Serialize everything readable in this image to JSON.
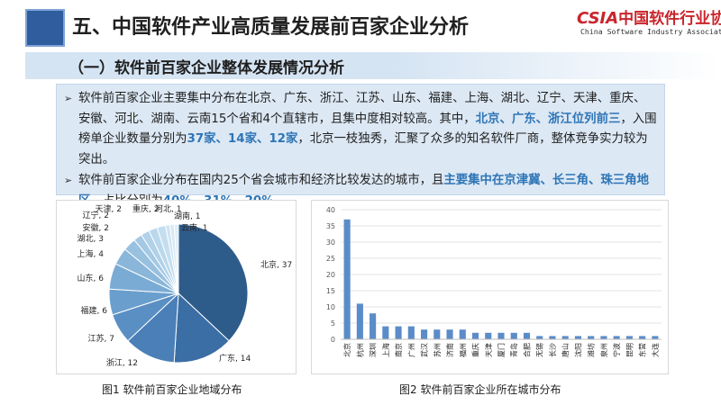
{
  "header": {
    "title": "五、中国软件产业高质量发展前百家企业分析",
    "logo_mark": "CSIA",
    "logo_text": "中国软件行业协会",
    "logo_sub": "China Software Industry Association"
  },
  "subtitle": "（一）软件前百家企业整体发展情况分析",
  "paragraphs": [
    {
      "segments": [
        {
          "text": "软件前百家企业主要集中分布在北京、广东、浙江、江苏、山东、福建、上海、湖北、辽宁、天津、重庆、安徽、河北、湖南、云南15个省和4个直辖市，且集中度相对较高。其中，",
          "hl": false
        },
        {
          "text": "北京、广东、浙江位列前三",
          "hl": true
        },
        {
          "text": "，入围榜单企业数量分别为",
          "hl": false
        },
        {
          "text": "37家、14家、12家",
          "hl": true
        },
        {
          "text": "，北京一枝独秀，汇聚了众多的知名软件厂商，整体竞争实力较为突出。",
          "hl": false
        }
      ]
    },
    {
      "segments": [
        {
          "text": "软件前百家企业分布在国内25个省会城市和经济比较发达的城市，且",
          "hl": false
        },
        {
          "text": "主要集中在京津冀、长三角、珠三角地区",
          "hl": true
        },
        {
          "text": "，占比分别为",
          "hl": false
        },
        {
          "text": "40%、31%、20%。",
          "hl": true
        }
      ]
    }
  ],
  "captions": {
    "fig1": "图1  软件前百家企业地域分布",
    "fig2": "图2  软件前百家企业所在城市分布"
  },
  "chart_data": [
    {
      "type": "pie",
      "categories": [
        "北京",
        "广东",
        "浙江",
        "江苏",
        "福建",
        "山东",
        "上海",
        "湖北",
        "安徽",
        "辽宁",
        "天津",
        "重庆",
        "河北",
        "湖南",
        "云南"
      ],
      "values": [
        37,
        14,
        12,
        7,
        6,
        6,
        4,
        3,
        2,
        2,
        2,
        2,
        1,
        1,
        1
      ],
      "colors": [
        "#2e5c8a",
        "#3a6ea5",
        "#4a7fb8",
        "#5a8fc4",
        "#6a9ecd",
        "#7aabd4",
        "#8ab6da",
        "#98c0df",
        "#a4c9e4",
        "#b0d1e8",
        "#bad8ec",
        "#c4deef",
        "#cde4f2",
        "#d6e9f5",
        "#dfeef8"
      ]
    },
    {
      "type": "bar",
      "categories": [
        "北京",
        "杭州",
        "深圳",
        "上海",
        "南京",
        "广州",
        "武汉",
        "苏州",
        "济南",
        "福州",
        "重庆",
        "天津",
        "厦门",
        "青岛",
        "合肥",
        "无锡",
        "长沙",
        "唐山",
        "沈阳",
        "潍坊",
        "泉州",
        "宁波",
        "昆明",
        "东营",
        "大连"
      ],
      "values": [
        37,
        11,
        8,
        4,
        4,
        4,
        3,
        3,
        3,
        3,
        2,
        2,
        2,
        2,
        2,
        1,
        1,
        1,
        1,
        1,
        1,
        1,
        1,
        1,
        1
      ],
      "ylim": [
        0,
        40
      ],
      "yticks": [
        0,
        5,
        10,
        15,
        20,
        25,
        30,
        35,
        40
      ],
      "grid": true,
      "color": "#5b8cc8"
    }
  ]
}
